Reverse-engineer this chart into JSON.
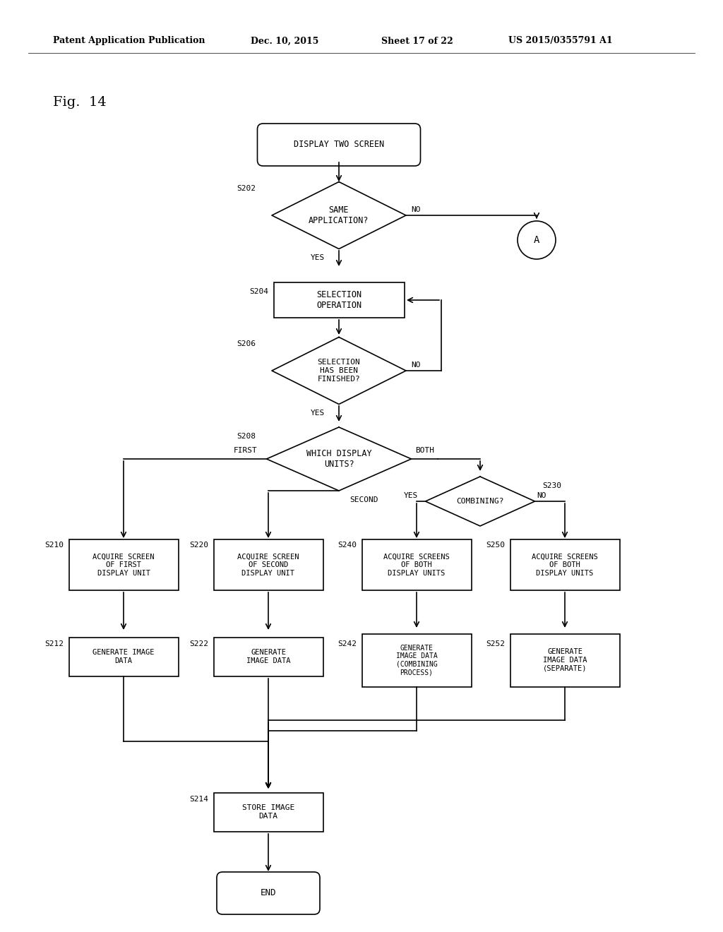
{
  "bg_color": "#ffffff",
  "header_left": "Patent Application Publication",
  "header_mid1": "Dec. 10, 2015",
  "header_mid2": "Sheet 17 of 22",
  "header_right": "US 2015/0355791 A1",
  "fig_label": "Fig.  14",
  "lw": 1.2,
  "font_mono": "DejaVu Sans Mono",
  "font_serif": "DejaVu Serif"
}
